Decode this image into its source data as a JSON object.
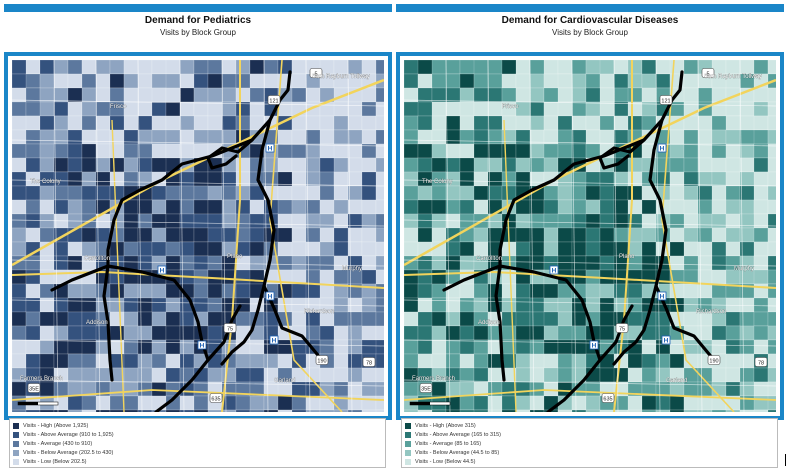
{
  "panels": [
    {
      "title": "Demand for Pediatrics",
      "subtitle": "Visits by Block Group",
      "palette": [
        "#1b2f52",
        "#34527e",
        "#5c789e",
        "#8ea4c1",
        "#d3dcea"
      ],
      "legend": [
        {
          "label": "Visits - High (Above 1,925)",
          "color": "#1b2f52"
        },
        {
          "label": "Visits - Above Average (910 to 1,925)",
          "color": "#34527e"
        },
        {
          "label": "Visits - Average (430 to 910)",
          "color": "#5c789e"
        },
        {
          "label": "Visits - Below Average (202.5 to 430)",
          "color": "#8ea4c1"
        },
        {
          "label": "Visits - Low (Below 202.5)",
          "color": "#d3dcea"
        }
      ]
    },
    {
      "title": "Demand for Cardiovascular Diseases",
      "subtitle": "Visits by Block Group",
      "palette": [
        "#0b4a48",
        "#2b7774",
        "#59a09b",
        "#93c6c1",
        "#cfe6e3"
      ],
      "legend": [
        {
          "label": "Visits - High (Above 315)",
          "color": "#0b4a48"
        },
        {
          "label": "Visits - Above Average (165 to 315)",
          "color": "#2b7774"
        },
        {
          "label": "Visits - Average (85 to 165)",
          "color": "#59a09b"
        },
        {
          "label": "Visits - Below Average (44.5 to 85)",
          "color": "#93c6c1"
        },
        {
          "label": "Visits - Low (Below 44.5)",
          "color": "#cfe6e3"
        }
      ]
    }
  ],
  "map_labels": {
    "top_road": "Sam Rayburn Tollway",
    "city_north": "Frisco",
    "city_west": "The Colony",
    "city_center": "Plano",
    "city_mid_left": "Carrollton",
    "city_lower_left": "Addison",
    "city_lower_right": "Richardson",
    "city_bottom_left": "Farmers Branch",
    "city_bottom_right": "Garland",
    "city_right": "Murphy",
    "shield_75": "75",
    "shield_121": "121",
    "shield_190": "190",
    "shield_635": "635",
    "shield_35e": "35E",
    "shield_5": "5",
    "shield_78": "78"
  }
}
